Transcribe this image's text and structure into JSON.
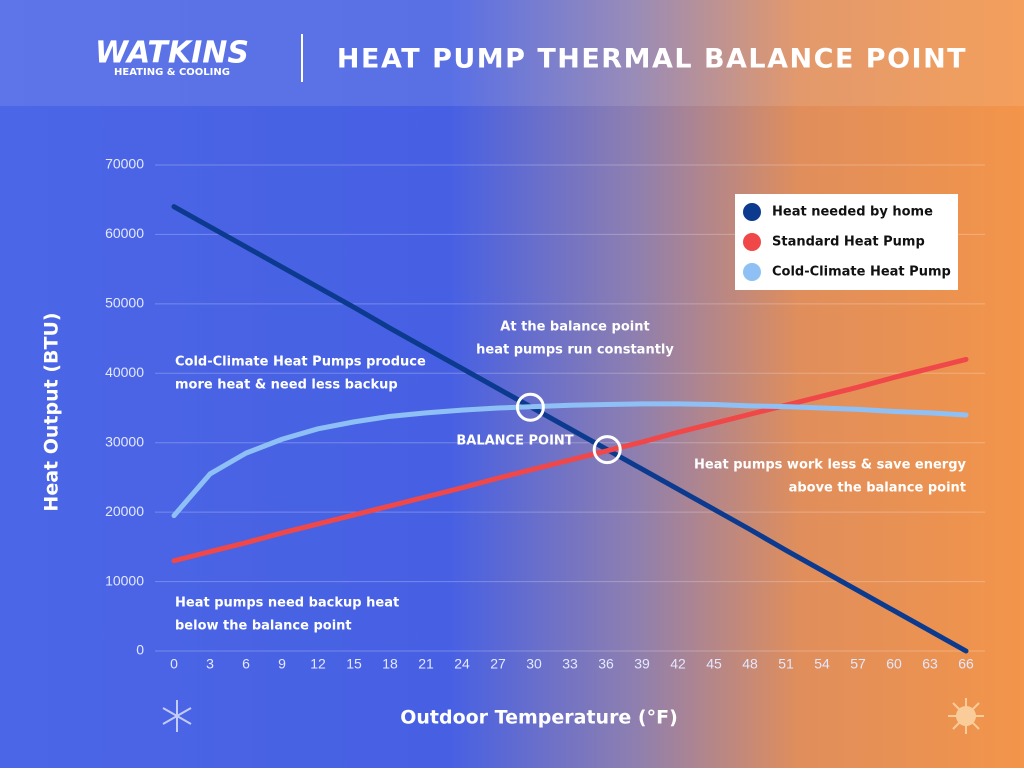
{
  "brand": {
    "name": "WATKINS",
    "tagline": "HEATING & COOLING"
  },
  "chart_data": {
    "type": "line",
    "title": "HEAT PUMP THERMAL BALANCE POINT",
    "x_label": "Outdoor Temperature (°F)",
    "y_label": "Heat Output  (BTU)",
    "x": [
      0,
      3,
      6,
      9,
      12,
      15,
      18,
      21,
      24,
      27,
      30,
      33,
      36,
      39,
      42,
      45,
      48,
      51,
      54,
      57,
      60,
      63,
      66
    ],
    "series": [
      {
        "name": "Heat needed by home",
        "color": "#0b3a8f",
        "values": [
          64000,
          61100,
          58200,
          55300,
          52400,
          49500,
          46500,
          43600,
          40700,
          37800,
          34900,
          32000,
          29100,
          26200,
          23300,
          20400,
          17500,
          14500,
          11600,
          8700,
          5800,
          2900,
          0
        ]
      },
      {
        "name": "Standard Heat Pump",
        "color": "#f04848",
        "values": [
          13000,
          14300,
          15600,
          17000,
          18300,
          19600,
          20900,
          22200,
          23500,
          24900,
          26200,
          27500,
          28800,
          30100,
          31500,
          32800,
          34100,
          35400,
          36700,
          38000,
          39400,
          40700,
          42000
        ]
      },
      {
        "name": "Cold-Climate Heat Pump",
        "color": "#8ec0f5",
        "values": [
          19500,
          25500,
          28500,
          30500,
          32000,
          33000,
          33800,
          34300,
          34700,
          35000,
          35200,
          35400,
          35500,
          35600,
          35600,
          35500,
          35300,
          35200,
          35000,
          34800,
          34500,
          34300,
          34000
        ]
      }
    ],
    "balance_points": {
      "x": [
        29.7,
        36.1
      ],
      "y": [
        35100,
        29000
      ]
    },
    "balance_label": "BALANCE POINT",
    "annotations": [
      {
        "lines": [
          "Cold-Climate Heat Pumps produce",
          "more heat & need less backup"
        ]
      },
      {
        "lines": [
          "At the balance point",
          "heat pumps run constantly"
        ]
      },
      {
        "lines": [
          "Heat pumps work less & save energy",
          "above the balance point"
        ]
      },
      {
        "lines": [
          "Heat pumps need backup heat",
          "below the balance point"
        ]
      }
    ],
    "xlim": [
      0,
      66
    ],
    "xticks": [
      0,
      3,
      6,
      9,
      12,
      15,
      18,
      21,
      24,
      27,
      30,
      33,
      36,
      39,
      42,
      45,
      48,
      51,
      54,
      57,
      60,
      63,
      66
    ],
    "ylim": [
      0,
      70000
    ],
    "yticks": [
      0,
      10000,
      20000,
      30000,
      40000,
      50000,
      60000,
      70000
    ],
    "grid": true
  }
}
